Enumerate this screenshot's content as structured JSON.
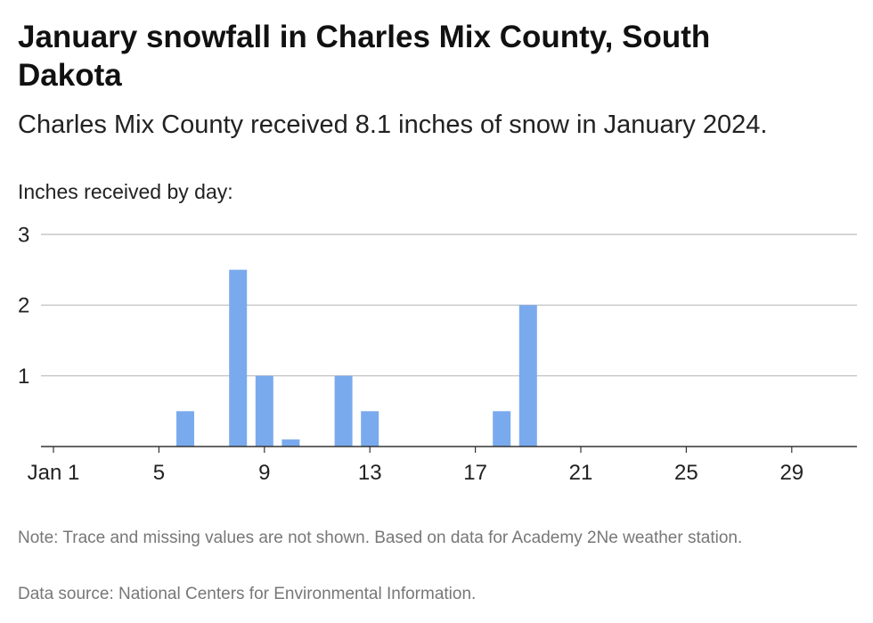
{
  "header": {
    "title": "January snowfall in Charles Mix County, South Dakota",
    "subtitle": "Charles Mix County received 8.1 inches of snow in January 2024."
  },
  "chart_data": {
    "type": "bar",
    "title": "January snowfall in Charles Mix County, South Dakota",
    "subtitle": "Charles Mix County received 8.1 inches of snow in January 2024.",
    "ylabel": "Inches received by day:",
    "xlabel": "",
    "x": [
      6,
      8,
      9,
      10,
      12,
      13,
      18,
      19
    ],
    "values": [
      0.5,
      2.5,
      1.0,
      0.1,
      1.0,
      0.5,
      0.5,
      2.0
    ],
    "xlim": [
      1,
      31
    ],
    "ylim": [
      0,
      3
    ],
    "x_ticks": [
      1,
      5,
      9,
      13,
      17,
      21,
      25,
      29
    ],
    "x_tick_labels": [
      "Jan 1",
      "5",
      "9",
      "13",
      "17",
      "21",
      "25",
      "29"
    ],
    "y_ticks": [
      1,
      2,
      3
    ],
    "y_tick_labels": [
      "1",
      "2",
      "3"
    ],
    "grid": true,
    "bar_color": "#7aaaee",
    "grid_color": "#bbbbbb",
    "axis_color": "#333333"
  },
  "footer": {
    "note": "Note: Trace and missing values are not shown. Based on data for Academy 2Ne weather station.",
    "source": "Data source: National Centers for Environmental Information."
  }
}
